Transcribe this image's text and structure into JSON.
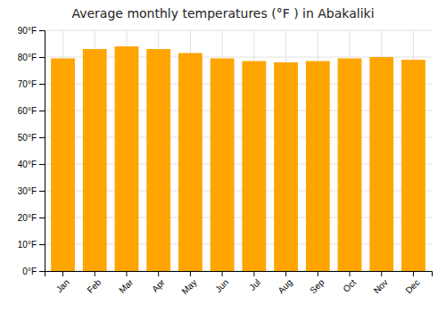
{
  "chart_data": {
    "type": "bar",
    "title": "Average monthly temperatures (°F ) in Abakaliki",
    "categories": [
      "Jan",
      "Feb",
      "Mar",
      "Apr",
      "May",
      "Jun",
      "Jul",
      "Aug",
      "Sep",
      "Oct",
      "Nov",
      "Dec"
    ],
    "values": [
      79.5,
      83.0,
      84.0,
      83.0,
      81.5,
      79.5,
      78.5,
      78.0,
      78.5,
      79.5,
      80.0,
      79.0
    ],
    "color": "#FFA500",
    "ylim": [
      0,
      90
    ],
    "yticks": [
      {
        "value": 0,
        "label": "0°F"
      },
      {
        "value": 10,
        "label": "10°F"
      },
      {
        "value": 20,
        "label": "20°F"
      },
      {
        "value": 30,
        "label": "30°F"
      },
      {
        "value": 40,
        "label": "40°F"
      },
      {
        "value": 50,
        "label": "50°F"
      },
      {
        "value": 60,
        "label": "60°F"
      },
      {
        "value": 70,
        "label": "70°F"
      },
      {
        "value": 80,
        "label": "80°F"
      },
      {
        "value": 90,
        "label": "90°F"
      }
    ],
    "grid": true
  }
}
